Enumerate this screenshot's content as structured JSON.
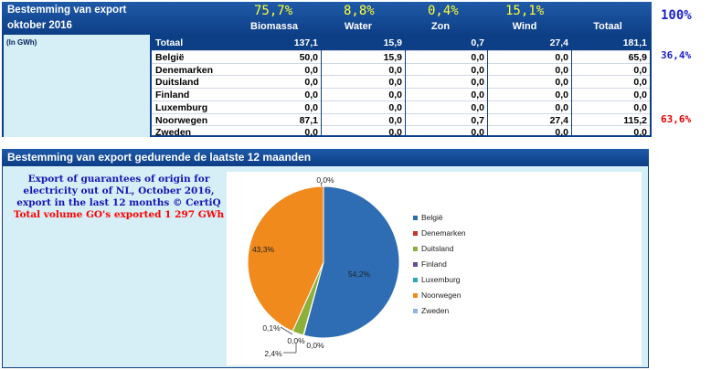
{
  "table": {
    "title_line1": "Bestemming van export",
    "title_line2": "oktober 2016",
    "unit": "(In GWh)",
    "percentages": [
      "75,7%",
      "8,8%",
      "0,4%",
      "15,1%"
    ],
    "columns": [
      "Biomassa",
      "Water",
      "Zon",
      "Wind",
      "Totaal"
    ],
    "total_row": {
      "label": "Totaal",
      "values": [
        "137,1",
        "15,9",
        "0,7",
        "27,4",
        "181,1"
      ]
    },
    "rows": [
      {
        "label": "België",
        "values": [
          "50,0",
          "15,9",
          "0,0",
          "0,0",
          "65,9"
        ]
      },
      {
        "label": "Denemarken",
        "values": [
          "0,0",
          "0,0",
          "0,0",
          "0,0",
          "0,0"
        ]
      },
      {
        "label": "Duitsland",
        "values": [
          "0,0",
          "0,0",
          "0,0",
          "0,0",
          "0,0"
        ]
      },
      {
        "label": "Finland",
        "values": [
          "0,0",
          "0,0",
          "0,0",
          "0,0",
          "0,0"
        ]
      },
      {
        "label": "Luxemburg",
        "values": [
          "0,0",
          "0,0",
          "0,0",
          "0,0",
          "0,0"
        ]
      },
      {
        "label": "Noorwegen",
        "values": [
          "87,1",
          "0,0",
          "0,7",
          "27,4",
          "115,2"
        ]
      },
      {
        "label": "Zweden",
        "values": [
          "0,0",
          "0,0",
          "0,0",
          "0,0",
          "0,0"
        ]
      }
    ],
    "side_total_pct": "100%",
    "side_belgie_pct": "36,4%",
    "side_noorwegen_pct": "63,6%",
    "colors": {
      "blue_side": "#2020c8",
      "red_side": "#e00000"
    }
  },
  "chart_panel": {
    "title": "Bestemming van export gedurende de laatste 12 maanden",
    "caption_lines": [
      "Export of guarantees of origin for",
      "electricity out of NL, October 2016,",
      "export in the last 12 months © CertiQ"
    ],
    "caption_red": "Total volume GO's exported 1 297 GWh"
  },
  "chart_data": {
    "type": "pie",
    "categories": [
      "België",
      "Denemarken",
      "Duitsland",
      "Finland",
      "Luxemburg",
      "Noorwegen",
      "Zweden"
    ],
    "values": [
      54.2,
      0.1,
      2.4,
      0.0,
      0.0,
      43.3,
      0.0
    ],
    "labels": [
      "54,2%",
      "0,1%",
      "2,4%",
      "0,0%",
      "0,0%",
      "43,3%",
      "0,0%"
    ],
    "colors": [
      "#2e6db4",
      "#c0392b",
      "#8db03a",
      "#6a4a9c",
      "#2aa6c4",
      "#f08a1c",
      "#8fb4df"
    ],
    "legend": "right"
  }
}
